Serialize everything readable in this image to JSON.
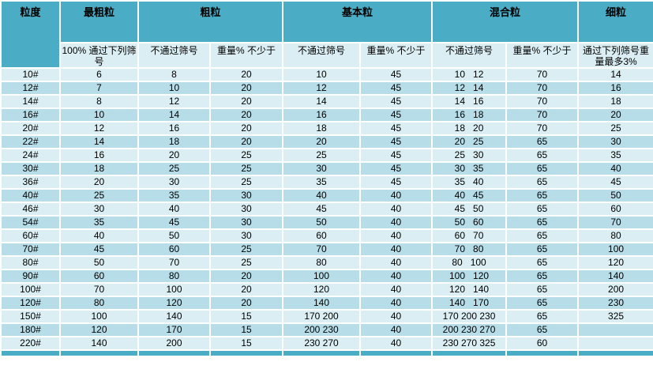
{
  "table": {
    "corner_header": "粒度",
    "groups": [
      {
        "label": "最粗粒"
      },
      {
        "label": "粗粒"
      },
      {
        "label": "基本粒"
      },
      {
        "label": "混合粒"
      },
      {
        "label": "细粒"
      }
    ],
    "subheaders": [
      "100% 通过下列筛号",
      "不通过筛号",
      "重量%  不少于",
      "不通过筛号",
      "重量%  不少于",
      "不通过筛号",
      "重量%  不少于",
      "通过下列筛号重量最多3%"
    ],
    "rows": [
      [
        "10#",
        "6",
        "8",
        "20",
        "10",
        "45",
        "10   12",
        "70",
        "14"
      ],
      [
        "12#",
        "7",
        "10",
        "20",
        "12",
        "45",
        "12   14",
        "70",
        "16"
      ],
      [
        "14#",
        "8",
        "12",
        "20",
        "14",
        "45",
        "14   16",
        "70",
        "18"
      ],
      [
        "16#",
        "10",
        "14",
        "20",
        "16",
        "45",
        "16   18",
        "70",
        "20"
      ],
      [
        "20#",
        "12",
        "16",
        "20",
        "18",
        "45",
        "18   20",
        "70",
        "25"
      ],
      [
        "22#",
        "14",
        "18",
        "20",
        "20",
        "45",
        "20   25",
        "65",
        "30"
      ],
      [
        "24#",
        "16",
        "20",
        "25",
        "25",
        "45",
        "25   30",
        "65",
        "35"
      ],
      [
        "30#",
        "18",
        "25",
        "25",
        "30",
        "45",
        "30   35",
        "65",
        "40"
      ],
      [
        "36#",
        "20",
        "30",
        "25",
        "35",
        "45",
        "35   40",
        "65",
        "45"
      ],
      [
        "40#",
        "25",
        "35",
        "30",
        "40",
        "40",
        "40   45",
        "65",
        "50"
      ],
      [
        "46#",
        "30",
        "40",
        "30",
        "45",
        "40",
        "45   50",
        "65",
        "60"
      ],
      [
        "54#",
        "35",
        "45",
        "30",
        "50",
        "40",
        "50   60",
        "65",
        "70"
      ],
      [
        "60#",
        "40",
        "50",
        "30",
        "60",
        "40",
        "60   70",
        "65",
        "80"
      ],
      [
        "70#",
        "45",
        "60",
        "25",
        "70",
        "40",
        "70   80",
        "65",
        "100"
      ],
      [
        "80#",
        "50",
        "70",
        "25",
        "80",
        "40",
        "80   100",
        "65",
        "120"
      ],
      [
        "90#",
        "60",
        "80",
        "20",
        "100",
        "40",
        "100   120",
        "65",
        "140"
      ],
      [
        "100#",
        "70",
        "100",
        "20",
        "120",
        "40",
        "120   140",
        "65",
        "200"
      ],
      [
        "120#",
        "80",
        "120",
        "20",
        "140",
        "40",
        "140   170",
        "65",
        "230"
      ],
      [
        "150#",
        "100",
        "140",
        "15",
        "170 200",
        "40",
        "170 200 230",
        "65",
        "325"
      ],
      [
        "180#",
        "120",
        "170",
        "15",
        "200 230",
        "40",
        "200 230 270",
        "65",
        ""
      ],
      [
        "220#",
        "140",
        "200",
        "15",
        "230 270",
        "40",
        "230 270 325",
        "60",
        ""
      ]
    ]
  },
  "colors": {
    "header_teal": "#4BACC6",
    "band_light": "#DAEEF3",
    "band_dark": "#B6DDE8",
    "gridline": "#FFFFFF",
    "text": "#000000"
  }
}
